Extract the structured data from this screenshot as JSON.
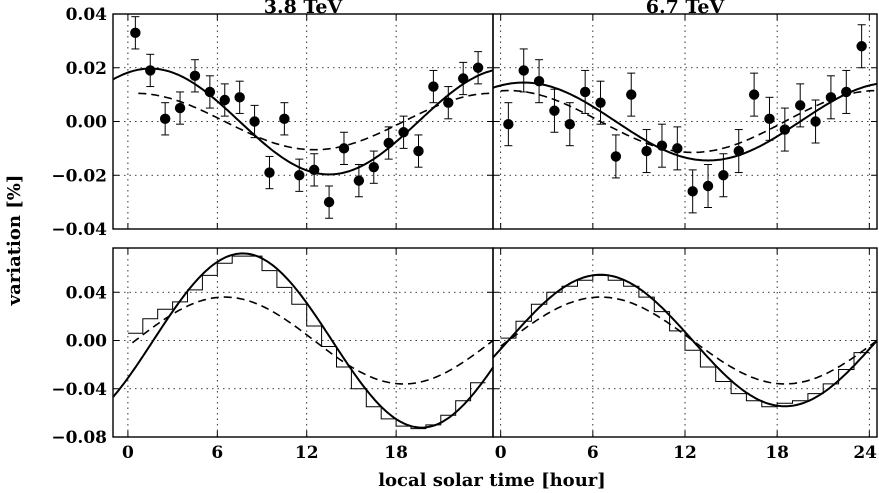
{
  "figure": {
    "ylabel": "variation [%]",
    "xlabel": "local solar time [hour]"
  },
  "chart_data": [
    {
      "id": "top-left",
      "type": "scatter",
      "title": "3.8 TeV",
      "xlim": [
        -1,
        24.5
      ],
      "ylim": [
        -0.04,
        0.04
      ],
      "xticks": [
        0,
        6,
        12,
        18
      ],
      "xtick_labels": [],
      "yticks": [
        -0.04,
        -0.02,
        0.0,
        0.02,
        0.04
      ],
      "ytick_labels": [
        "−0.04",
        "−0.02",
        "0.00",
        "0.02",
        "0.04"
      ],
      "grid": true,
      "points": {
        "x": [
          0.5,
          1.5,
          2.5,
          3.5,
          4.5,
          5.5,
          6.5,
          7.5,
          8.5,
          9.5,
          10.5,
          11.5,
          12.5,
          13.5,
          14.5,
          15.5,
          16.5,
          17.5,
          18.5,
          19.5,
          20.5,
          21.5,
          22.5,
          23.5
        ],
        "y": [
          0.033,
          0.019,
          0.001,
          0.005,
          0.017,
          0.011,
          0.008,
          0.009,
          0.0,
          -0.019,
          0.001,
          -0.02,
          -0.018,
          -0.03,
          -0.01,
          -0.022,
          -0.017,
          -0.008,
          -0.004,
          -0.011,
          0.013,
          0.007,
          0.016,
          0.02
        ],
        "err": [
          0.006,
          0.006,
          0.006,
          0.006,
          0.006,
          0.006,
          0.006,
          0.006,
          0.006,
          0.006,
          0.006,
          0.006,
          0.006,
          0.006,
          0.006,
          0.006,
          0.006,
          0.006,
          0.006,
          0.006,
          0.006,
          0.006,
          0.006,
          0.006
        ]
      },
      "fit_solid": {
        "amplitude": 0.0197,
        "peak_hour": 1.5,
        "period": 24
      },
      "fit_dashed": {
        "amplitude": 0.0105,
        "peak_hour": 0.5,
        "period": 24,
        "x_range": [
          0.7,
          24.5
        ]
      }
    },
    {
      "id": "top-right",
      "type": "scatter",
      "title": "6.7 TeV",
      "xlim": [
        -0.5,
        24.5
      ],
      "ylim": [
        -0.04,
        0.04
      ],
      "xticks": [
        0,
        6,
        12,
        18,
        24
      ],
      "xtick_labels": [],
      "yticks": [
        -0.04,
        -0.02,
        0.0,
        0.02,
        0.04
      ],
      "grid": true,
      "points": {
        "x": [
          0.5,
          1.5,
          2.5,
          3.5,
          4.5,
          5.5,
          6.5,
          7.5,
          8.5,
          9.5,
          10.5,
          11.5,
          12.5,
          13.5,
          14.5,
          15.5,
          16.5,
          17.5,
          18.5,
          19.5,
          20.5,
          21.5,
          22.5,
          23.5
        ],
        "y": [
          -0.001,
          0.019,
          0.015,
          0.004,
          -0.001,
          0.011,
          0.007,
          -0.013,
          0.01,
          -0.011,
          -0.009,
          -0.01,
          -0.026,
          -0.024,
          -0.02,
          -0.011,
          0.01,
          0.001,
          -0.003,
          0.006,
          0.0,
          0.009,
          0.011,
          0.028
        ],
        "err": [
          0.008,
          0.008,
          0.008,
          0.008,
          0.008,
          0.008,
          0.008,
          0.008,
          0.008,
          0.008,
          0.008,
          0.008,
          0.008,
          0.008,
          0.008,
          0.008,
          0.008,
          0.008,
          0.008,
          0.008,
          0.008,
          0.008,
          0.008,
          0.008
        ]
      },
      "fit_solid": {
        "amplitude": 0.0145,
        "peak_hour": 1.5,
        "period": 24
      },
      "fit_dashed": {
        "amplitude": 0.0115,
        "peak_hour": 0.5,
        "period": 24,
        "x_range": [
          0.0,
          24.5
        ]
      }
    },
    {
      "id": "bottom-left",
      "type": "line",
      "xlim": [
        -1,
        24.5
      ],
      "ylim": [
        -0.08,
        0.0767
      ],
      "xticks": [
        0,
        6,
        12,
        18
      ],
      "xtick_labels": [
        "0",
        "6",
        "12",
        "18"
      ],
      "yticks": [
        -0.08,
        -0.04,
        0.0,
        0.04
      ],
      "ytick_labels": [
        "−0.08",
        "−0.04",
        "0.00",
        "0.04"
      ],
      "grid": true,
      "fit_solid": {
        "amplitude": 0.0722,
        "peak_hour": 7.7,
        "period": 24
      },
      "fit_dashed": {
        "amplitude": 0.036,
        "peak_hour": 6.5,
        "period": 24,
        "x_range": [
          0.3,
          24.5
        ]
      },
      "histogram": {
        "bin_edges": [
          0,
          1,
          2,
          3,
          4,
          5,
          6,
          7,
          8,
          9,
          10,
          11,
          12,
          13,
          14,
          15,
          16,
          17,
          18,
          19,
          20,
          21,
          22,
          23,
          24
        ],
        "values": [
          0.006,
          0.018,
          0.026,
          0.032,
          0.042,
          0.054,
          0.064,
          0.07,
          0.07,
          0.058,
          0.044,
          0.03,
          0.012,
          -0.005,
          -0.022,
          -0.04,
          -0.055,
          -0.065,
          -0.071,
          -0.073,
          -0.07,
          -0.062,
          -0.05,
          -0.035
        ]
      }
    },
    {
      "id": "bottom-right",
      "type": "line",
      "xlim": [
        -0.5,
        24.5
      ],
      "ylim": [
        -0.08,
        0.0767
      ],
      "xticks": [
        0,
        6,
        12,
        18,
        24
      ],
      "xtick_labels": [
        "0",
        "6",
        "12",
        "18",
        "24"
      ],
      "yticks": [
        -0.08,
        -0.04,
        0.0,
        0.04
      ],
      "grid": true,
      "fit_solid": {
        "amplitude": 0.0545,
        "peak_hour": 6.5,
        "period": 24
      },
      "fit_dashed": {
        "amplitude": 0.036,
        "peak_hour": 6.5,
        "period": 24,
        "x_range": [
          0.0,
          24.5
        ]
      },
      "histogram": {
        "bin_edges": [
          0,
          1,
          2,
          3,
          4,
          5,
          6,
          7,
          8,
          9,
          10,
          11,
          12,
          13,
          14,
          15,
          16,
          17,
          18,
          19,
          20,
          21,
          22,
          23,
          24
        ],
        "values": [
          0.002,
          0.016,
          0.03,
          0.04,
          0.045,
          0.05,
          0.054,
          0.05,
          0.045,
          0.036,
          0.024,
          0.008,
          -0.008,
          -0.022,
          -0.034,
          -0.044,
          -0.05,
          -0.055,
          -0.052,
          -0.05,
          -0.044,
          -0.036,
          -0.024,
          -0.01
        ]
      }
    }
  ]
}
